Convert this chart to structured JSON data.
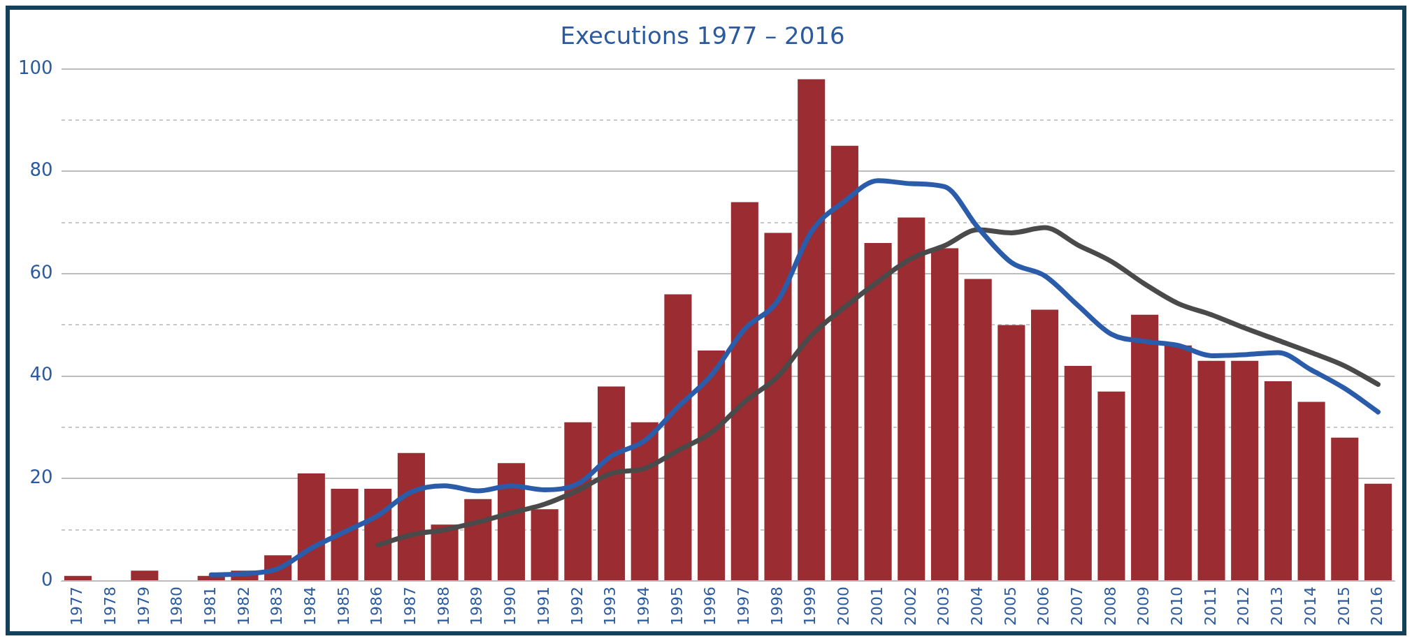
{
  "chart_data": {
    "type": "bar",
    "title": "Executions 1977 – 2016",
    "categories": [
      "1977",
      "1978",
      "1979",
      "1980",
      "1981",
      "1982",
      "1983",
      "1984",
      "1985",
      "1986",
      "1987",
      "1988",
      "1989",
      "1990",
      "1991",
      "1992",
      "1993",
      "1994",
      "1995",
      "1996",
      "1997",
      "1998",
      "1999",
      "2000",
      "2001",
      "2002",
      "2003",
      "2004",
      "2005",
      "2006",
      "2007",
      "2008",
      "2009",
      "2010",
      "2011",
      "2012",
      "2013",
      "2014",
      "2015",
      "2016"
    ],
    "series": [
      {
        "color": "#9b2c31",
        "values": [
          1,
          0,
          2,
          0,
          1,
          2,
          5,
          21,
          18,
          18,
          25,
          11,
          16,
          23,
          14,
          31,
          38,
          31,
          56,
          45,
          74,
          68,
          98,
          85,
          66,
          71,
          65,
          59,
          50,
          53,
          42,
          37,
          52,
          46,
          43,
          43,
          39,
          35,
          28,
          19
        ]
      },
      {
        "type": "line",
        "color": "#2a5caa",
        "values": [
          null,
          null,
          null,
          null,
          1.2,
          1.4,
          2.4,
          6.4,
          9.6,
          12.8,
          17.4,
          18.6,
          17.6,
          18.6,
          17.8,
          19,
          24.4,
          27.4,
          34,
          40.2,
          49.2,
          54.8,
          68.2,
          74.2,
          78.2,
          77.6,
          77,
          69,
          62.2,
          59.6,
          53.8,
          48.2,
          46.8,
          46,
          44,
          44.2,
          44.6,
          41.2,
          37.6,
          33
        ]
      },
      {
        "type": "line",
        "color": "#4a4a4a",
        "values": [
          null,
          null,
          null,
          null,
          null,
          null,
          null,
          null,
          null,
          7,
          9,
          10,
          11.5,
          13.3,
          15,
          17.7,
          21,
          22,
          25.5,
          29,
          35,
          40,
          48,
          53.5,
          58.5,
          63,
          65.5,
          68.6,
          68,
          69,
          65.6,
          62.4,
          58,
          54.2,
          52,
          49.4,
          47,
          44.6,
          42,
          38.4
        ]
      }
    ],
    "ylim": [
      0,
      100
    ],
    "yticks": [
      0,
      {
        "value": 10,
        "label": null
      },
      20,
      {
        "value": 30,
        "label": null
      },
      40,
      {
        "value": 50,
        "label": null
      },
      60,
      {
        "value": 70,
        "label": null
      },
      80,
      {
        "value": 90,
        "label": null
      },
      100
    ],
    "grid": "y",
    "legend": false,
    "marker": "none"
  }
}
